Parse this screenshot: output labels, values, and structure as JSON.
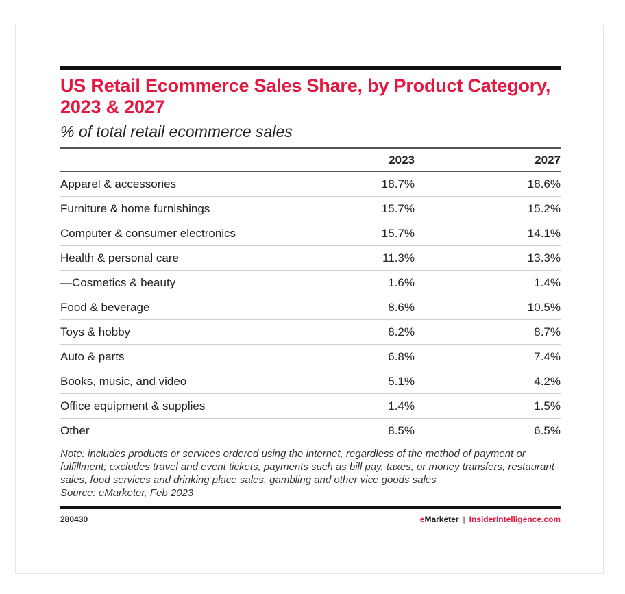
{
  "title": "US Retail Ecommerce Sales Share, by Product Category, 2023 & 2027",
  "subtitle": "% of total retail ecommerce sales",
  "chart_data": {
    "type": "table",
    "columns": [
      "",
      "2023",
      "2027"
    ],
    "rows": [
      {
        "label": "Apparel & accessories",
        "v2023": "18.7%",
        "v2027": "18.6%"
      },
      {
        "label": "Furniture & home furnishings",
        "v2023": "15.7%",
        "v2027": "15.2%"
      },
      {
        "label": "Computer & consumer electronics",
        "v2023": "15.7%",
        "v2027": "14.1%"
      },
      {
        "label": "Health & personal care",
        "v2023": "11.3%",
        "v2027": "13.3%"
      },
      {
        "label": "—Cosmetics & beauty",
        "v2023": "1.6%",
        "v2027": "1.4%"
      },
      {
        "label": "Food & beverage",
        "v2023": "8.6%",
        "v2027": "10.5%"
      },
      {
        "label": "Toys & hobby",
        "v2023": "8.2%",
        "v2027": "8.7%"
      },
      {
        "label": "Auto & parts",
        "v2023": "6.8%",
        "v2027": "7.4%"
      },
      {
        "label": "Books, music, and video",
        "v2023": "5.1%",
        "v2027": "4.2%"
      },
      {
        "label": "Office equipment & supplies",
        "v2023": "1.4%",
        "v2027": "1.5%"
      },
      {
        "label": "Other",
        "v2023": "8.5%",
        "v2027": "6.5%"
      }
    ]
  },
  "note": "Note: includes products or services ordered using the internet, regardless of the method of payment or fulfillment; excludes travel and event tickets, payments such as bill pay, taxes, or money transfers, restaurant sales, food services and drinking place sales, gambling and other vice goods sales",
  "source": "Source: eMarketer, Feb 2023",
  "footer": {
    "id": "280430",
    "brand_e": "e",
    "brand_rest": "Marketer",
    "separator": "|",
    "site": "InsiderIntelligence.com"
  },
  "colors": {
    "accent": "#e5173f"
  }
}
